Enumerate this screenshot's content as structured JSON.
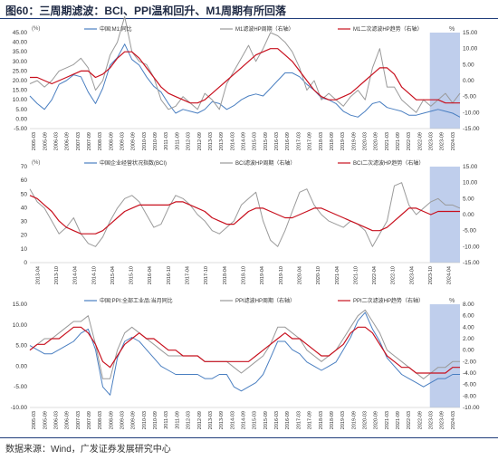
{
  "title": "图60：三周期滤波：BCI、PPI温和回升、M1周期有所回落",
  "source": "数据来源：Wind，广发证券发展研究中心",
  "colors": {
    "blue": "#4a7fc1",
    "gray": "#9a9a9a",
    "red": "#c8101e",
    "shade": "#a9bde6"
  },
  "chart_data": [
    {
      "type": "line",
      "left_unit": "(%)",
      "right_unit": "%",
      "series": [
        {
          "name": "中国:M1:同比",
          "axis": "left",
          "color": "blue",
          "values": [
            12,
            8,
            5,
            10,
            18,
            20,
            23,
            22,
            14,
            8,
            16,
            28,
            32,
            39,
            31,
            28,
            22,
            17,
            14,
            8,
            3,
            5,
            4,
            3,
            5,
            9,
            8,
            5,
            7,
            10,
            12,
            13,
            12,
            16,
            20,
            24,
            24,
            22,
            18,
            15,
            11,
            10,
            8,
            4,
            2,
            1,
            4,
            8,
            9,
            6,
            5,
            4,
            2,
            2,
            3,
            4,
            5,
            4,
            3,
            1
          ]
        },
        {
          "name": "M1滤波HP周期（右轴）",
          "axis": "right",
          "color": "gray",
          "values": [
            -1,
            0,
            -2,
            0,
            3,
            4,
            5,
            7,
            4,
            -3,
            0,
            8,
            12,
            20,
            9,
            6,
            5,
            1,
            -6,
            -9,
            -8,
            -5,
            -7,
            -9,
            -4,
            -6,
            -9,
            -1,
            3,
            7,
            11,
            6,
            10,
            15,
            14,
            12,
            9,
            4,
            -3,
            0,
            -6,
            -4,
            -6,
            -8,
            -5,
            -3,
            -6,
            4,
            10,
            -2,
            -2,
            -6,
            -8,
            -10,
            -6,
            -8,
            -6,
            -4,
            -7,
            -4
          ]
        },
        {
          "name": "M1二次滤波HP趋势（右轴）",
          "axis": "right",
          "color": "red",
          "values": [
            1,
            1,
            0,
            -1,
            0,
            1,
            2,
            3,
            3,
            1,
            2,
            4,
            7,
            9,
            9,
            7,
            4,
            1,
            -2,
            -4,
            -5,
            -6,
            -7,
            -7,
            -6,
            -4,
            -2,
            0,
            2,
            4,
            6,
            8,
            9,
            10,
            10,
            8,
            6,
            3,
            0,
            -3,
            -5,
            -6,
            -6,
            -5,
            -4,
            -2,
            0,
            2,
            4,
            4,
            2,
            -2,
            -4,
            -6,
            -6,
            -6,
            -6,
            -7,
            -7,
            -7
          ]
        }
      ],
      "x_labels": [
        "2005-03",
        "2005-09",
        "2006-03",
        "2006-09",
        "2007-03",
        "2007-09",
        "2008-03",
        "2008-09",
        "2009-03",
        "2009-09",
        "2010-03",
        "2010-09",
        "2011-03",
        "2011-09",
        "2012-03",
        "2012-09",
        "2013-03",
        "2013-09",
        "2014-03",
        "2014-09",
        "2015-03",
        "2015-09",
        "2016-03",
        "2016-09",
        "2017-03",
        "2017-09",
        "2018-03",
        "2018-09",
        "2019-03",
        "2019-09",
        "2020-03",
        "2020-09",
        "2021-03",
        "2021-09",
        "2022-03",
        "2022-09",
        "2023-03",
        "2023-09",
        "2024-03"
      ],
      "y_left_ticks": [
        "45.00",
        "40.00",
        "35.00",
        "30.00",
        "25.00",
        "20.00",
        "15.00",
        "10.00",
        "5.00",
        "0.00",
        "-5.00"
      ],
      "y_right_ticks": [
        "15.00",
        "10.00",
        "5.00",
        "0.00",
        "-5.00",
        "-10.00",
        "-15.00"
      ],
      "ylim_left": [
        -5,
        45
      ],
      "ylim_right": [
        -15,
        15
      ]
    },
    {
      "type": "line",
      "left_unit": "(%)",
      "right_unit": "",
      "series": [
        {
          "name": "中国企业经营状况指数(BCI)",
          "axis": "left",
          "color": "blue",
          "values": []
        },
        {
          "name": "BCI滤波HP周期（右轴）",
          "axis": "right",
          "color": "gray",
          "values": [
            8,
            4,
            2,
            -2,
            -6,
            -4,
            -1,
            -6,
            -9,
            -10,
            -7,
            -2,
            2,
            5,
            6,
            4,
            0,
            -4,
            -3,
            2,
            6,
            5,
            3,
            0,
            -2,
            -5,
            -6,
            -4,
            -2,
            3,
            5,
            7,
            -2,
            -8,
            -10,
            -5,
            1,
            7,
            8,
            3,
            0,
            -2,
            -3,
            -4,
            -2,
            -3,
            -5,
            -10,
            -6,
            -2,
            9,
            10,
            3,
            0,
            2,
            4,
            5,
            3,
            3,
            2
          ]
        },
        {
          "name": "BCI二次滤波HP趋势（右轴）",
          "axis": "right",
          "color": "red",
          "values": [
            6,
            5,
            3,
            1,
            -2,
            -4,
            -5,
            -6,
            -6,
            -6,
            -5,
            -3,
            -1,
            1,
            2,
            3,
            3,
            3,
            3,
            3,
            4,
            4,
            3,
            2,
            1,
            -1,
            -2,
            -3,
            -3,
            -1,
            1,
            2,
            2,
            1,
            0,
            -1,
            -1,
            0,
            1,
            2,
            2,
            1,
            0,
            -1,
            -2,
            -3,
            -4,
            -5,
            -5,
            -4,
            -2,
            0,
            2,
            2,
            1,
            0,
            1,
            1,
            1,
            1
          ]
        }
      ],
      "x_labels": [
        "2013-04",
        "2013-10",
        "2014-04",
        "2014-10",
        "2015-04",
        "2015-10",
        "2016-04",
        "2016-10",
        "2017-04",
        "2017-10",
        "2018-04",
        "2018-10",
        "2019-04",
        "2019-10",
        "2020-04",
        "2020-10",
        "2021-04",
        "2021-10",
        "2022-04",
        "2022-10",
        "2023-04",
        "2023-10",
        "2024-04"
      ],
      "y_left_ticks": [
        "70",
        "60",
        "50",
        "40",
        "30",
        "20",
        "10",
        "0"
      ],
      "y_right_ticks": [
        "15.00",
        "10.00",
        "5.00",
        "0.00",
        "-5.00",
        "-10.00",
        "-15.00"
      ],
      "ylim_left": [
        0,
        70
      ],
      "ylim_right": [
        -15,
        15
      ]
    },
    {
      "type": "line",
      "left_unit": "",
      "right_unit": "%",
      "series": [
        {
          "name": "中国:PPI:全部工业品:当月同比",
          "axis": "left",
          "color": "blue",
          "values": [
            5,
            4,
            3,
            3,
            4,
            5,
            6,
            8,
            9,
            4,
            -5,
            -7,
            2,
            6,
            7,
            6,
            4,
            2,
            0,
            -1,
            -2,
            -2,
            -2,
            -2,
            -3,
            -3,
            -2,
            -2,
            -5,
            -6,
            -5,
            -4,
            -2,
            2,
            6,
            6,
            4,
            3,
            1,
            0,
            -1,
            0,
            1,
            4,
            7,
            11,
            13,
            9,
            6,
            2,
            0,
            -2,
            -3,
            -4,
            -5,
            -4,
            -3,
            -3,
            -2,
            -2
          ]
        },
        {
          "name": "PPI滤波HP周期（右轴）",
          "axis": "right",
          "color": "gray",
          "values": [
            0,
            1,
            2,
            2,
            3,
            4,
            5,
            5,
            6,
            1,
            -5,
            -5,
            0,
            3,
            4,
            3,
            2,
            1,
            0,
            -1,
            -1,
            -1,
            -1,
            -1,
            -2,
            -2,
            -2,
            -2,
            -3,
            -4,
            -3,
            -2,
            -1,
            1,
            4,
            4,
            3,
            2,
            0,
            -1,
            -2,
            -1,
            0,
            2,
            4,
            6,
            7,
            5,
            3,
            0,
            -1,
            -2,
            -3,
            -4,
            -5,
            -4,
            -3,
            -3,
            -2,
            -2
          ]
        },
        {
          "name": "PPI二次滤波HP趋势（右轴）",
          "axis": "right",
          "color": "red",
          "values": [
            0,
            1,
            1,
            2,
            2,
            3,
            4,
            4,
            3,
            1,
            -2,
            -3,
            -1,
            1,
            2,
            3,
            2,
            2,
            1,
            0,
            0,
            -1,
            -1,
            -1,
            -2,
            -2,
            -2,
            -2,
            -2,
            -2,
            -2,
            -1,
            0,
            1,
            2,
            3,
            2,
            2,
            1,
            0,
            -1,
            -1,
            0,
            1,
            3,
            4,
            4,
            3,
            1,
            -1,
            -2,
            -3,
            -3,
            -4,
            -4,
            -4,
            -4,
            -4,
            -3,
            -3
          ]
        }
      ],
      "x_labels": [
        "2005-03",
        "2005-09",
        "2006-03",
        "2006-09",
        "2007-03",
        "2007-09",
        "2008-03",
        "2008-09",
        "2009-03",
        "2009-09",
        "2010-03",
        "2010-09",
        "2011-03",
        "2011-09",
        "2012-03",
        "2012-09",
        "2013-03",
        "2013-09",
        "2014-03",
        "2014-09",
        "2015-03",
        "2015-09",
        "2016-03",
        "2016-09",
        "2017-03",
        "2017-09",
        "2018-03",
        "2018-09",
        "2019-03",
        "2019-09",
        "2020-03",
        "2020-09",
        "2021-03",
        "2021-09",
        "2022-03",
        "2022-09",
        "2023-03",
        "2023-09",
        "2024-03"
      ],
      "y_left_ticks": [
        "15.00",
        "10.00",
        "5.00",
        "0.00",
        "-5.00",
        "-10.00"
      ],
      "y_right_ticks": [
        "8.00",
        "6.00",
        "4.00",
        "2.00",
        "0.00",
        "-2.00",
        "-4.00",
        "-6.00",
        "-8.00",
        "-10.00"
      ],
      "ylim_left": [
        -10,
        15
      ],
      "ylim_right": [
        -10,
        8
      ]
    }
  ]
}
